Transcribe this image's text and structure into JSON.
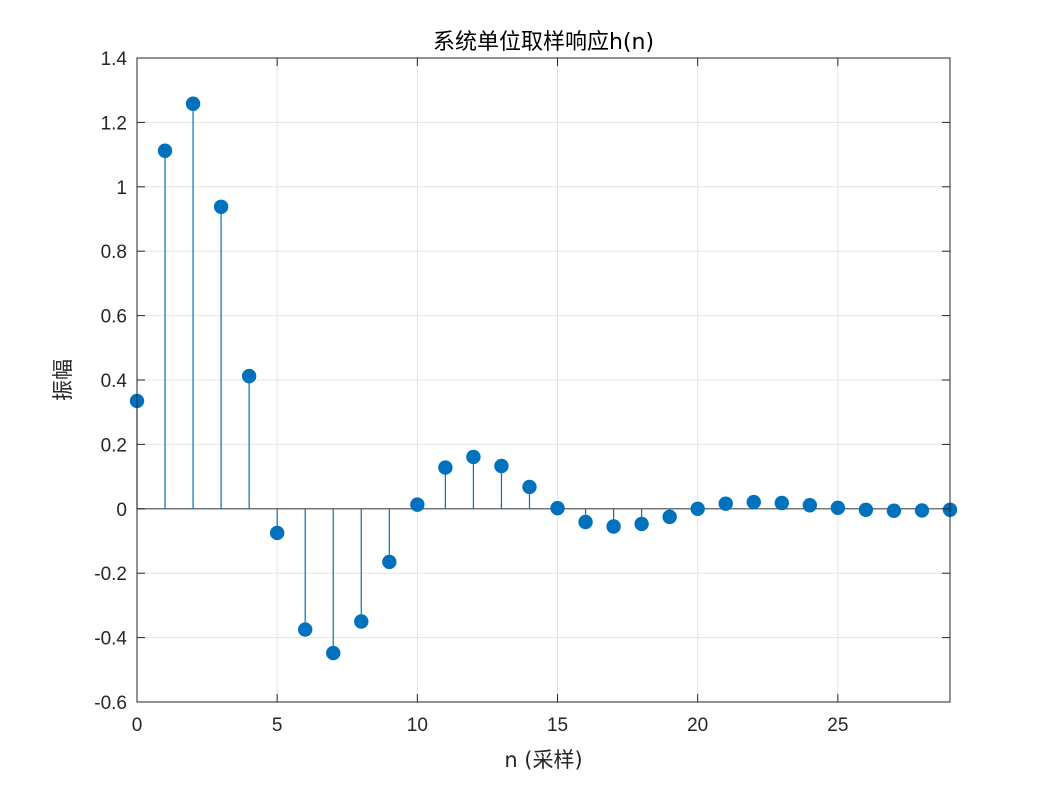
{
  "chart_data": {
    "type": "stem",
    "title": "系统单位取样响应h(n)",
    "xlabel": "n (采样)",
    "ylabel": "振幅",
    "xlim": [
      0,
      29
    ],
    "ylim": [
      -0.6,
      1.4
    ],
    "xticks": [
      0,
      5,
      10,
      15,
      20,
      25
    ],
    "xtick_labels": [
      "0",
      "5",
      "10",
      "15",
      "20",
      "25"
    ],
    "yticks": [
      -0.6,
      -0.4,
      -0.2,
      0,
      0.2,
      0.4,
      0.6,
      0.8,
      1,
      1.2,
      1.4
    ],
    "ytick_labels": [
      "-0.6",
      "-0.4",
      "-0.2",
      "0",
      "0.2",
      "0.4",
      "0.6",
      "0.8",
      "1",
      "1.2",
      "1.4"
    ],
    "grid": true,
    "color": "#0072BD",
    "x": [
      0,
      1,
      2,
      3,
      4,
      5,
      6,
      7,
      8,
      9,
      10,
      11,
      12,
      13,
      14,
      15,
      16,
      17,
      18,
      19,
      20,
      21,
      22,
      23,
      24,
      25,
      26,
      27,
      28,
      29
    ],
    "values": [
      0.335,
      1.112,
      1.258,
      0.938,
      0.412,
      -0.075,
      -0.375,
      -0.448,
      -0.35,
      -0.165,
      0.013,
      0.128,
      0.161,
      0.133,
      0.068,
      0.002,
      -0.041,
      -0.055,
      -0.047,
      -0.025,
      0.0,
      0.016,
      0.021,
      0.018,
      0.011,
      0.003,
      -0.003,
      -0.006,
      -0.005,
      -0.003
    ]
  }
}
